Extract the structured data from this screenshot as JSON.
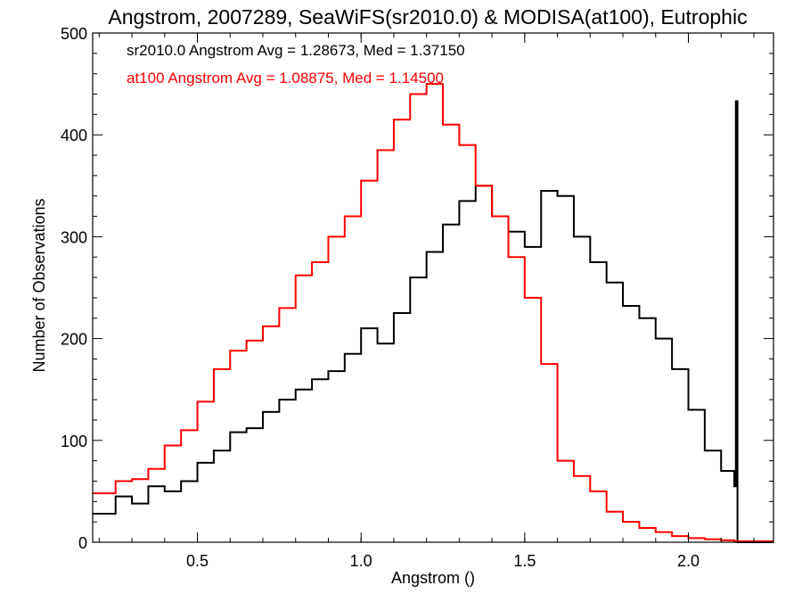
{
  "chart_data": {
    "type": "line",
    "title": "Angstrom, 2007289, SeaWiFS(sr2010.0) & MODISA(at100), Eutrophic",
    "xlabel": "Angstrom ()",
    "ylabel": "Number of Observations",
    "xlim": [
      0.18,
      2.26
    ],
    "ylim": [
      0,
      500
    ],
    "xticks": [
      "0.5",
      "1.0",
      "1.5",
      "2.0"
    ],
    "yticks": [
      "0",
      "100",
      "200",
      "300",
      "400",
      "500"
    ],
    "grid": false,
    "step_histogram": true,
    "annotations": [
      {
        "text": "sr2010.0 Angstrom Avg = 1.28673, Med = 1.37150",
        "color": "#000000"
      },
      {
        "text": "at100 Angstrom Avg = 1.08875, Med = 1.14500",
        "color": "#ff0000"
      }
    ],
    "series": [
      {
        "color": "#000000",
        "x": [
          0.18,
          0.25,
          0.3,
          0.35,
          0.4,
          0.45,
          0.5,
          0.55,
          0.6,
          0.65,
          0.7,
          0.75,
          0.8,
          0.85,
          0.9,
          0.95,
          1.0,
          1.05,
          1.1,
          1.15,
          1.2,
          1.25,
          1.3,
          1.35,
          1.4,
          1.45,
          1.5,
          1.55,
          1.6,
          1.65,
          1.7,
          1.75,
          1.8,
          1.85,
          1.9,
          1.95,
          2.0,
          2.05,
          2.1,
          2.14,
          2.145,
          2.15,
          2.26
        ],
        "y": [
          28,
          45,
          38,
          55,
          50,
          60,
          78,
          90,
          108,
          112,
          128,
          140,
          150,
          160,
          168,
          185,
          210,
          195,
          225,
          260,
          285,
          312,
          335,
          350,
          320,
          305,
          290,
          345,
          340,
          300,
          275,
          255,
          232,
          220,
          200,
          170,
          130,
          90,
          70,
          55,
          433,
          0,
          0
        ]
      },
      {
        "color": "#ff0000",
        "x": [
          0.18,
          0.25,
          0.3,
          0.35,
          0.4,
          0.45,
          0.5,
          0.55,
          0.6,
          0.65,
          0.7,
          0.75,
          0.8,
          0.85,
          0.9,
          0.95,
          1.0,
          1.05,
          1.1,
          1.15,
          1.2,
          1.25,
          1.3,
          1.35,
          1.4,
          1.45,
          1.5,
          1.55,
          1.6,
          1.65,
          1.7,
          1.75,
          1.8,
          1.85,
          1.9,
          1.95,
          2.0,
          2.05,
          2.1,
          2.14,
          2.26
        ],
        "y": [
          48,
          60,
          62,
          72,
          95,
          110,
          138,
          170,
          188,
          198,
          212,
          230,
          262,
          275,
          300,
          320,
          355,
          385,
          415,
          440,
          450,
          410,
          390,
          350,
          320,
          280,
          240,
          175,
          80,
          65,
          50,
          30,
          20,
          14,
          10,
          6,
          4,
          3,
          2,
          1,
          1
        ]
      }
    ]
  }
}
